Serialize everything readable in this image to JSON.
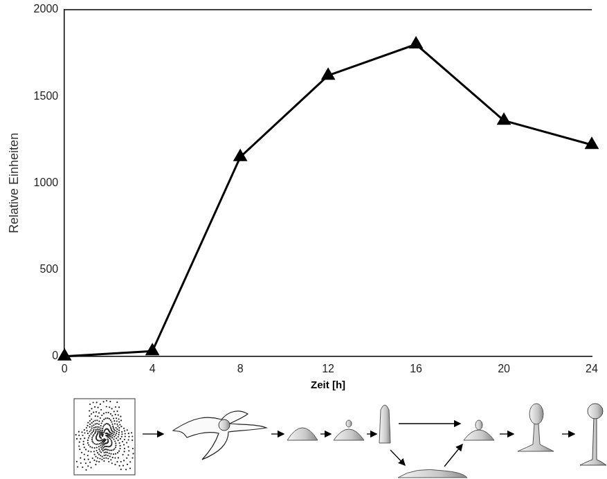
{
  "chart_data": {
    "type": "line",
    "x_label": "Zeit [h]",
    "y_label": "Relative Einheiten",
    "x": [
      0,
      4,
      8,
      12,
      16,
      20,
      24
    ],
    "values": [
      0,
      30,
      1150,
      1620,
      1800,
      1360,
      1220
    ],
    "color": "#000000",
    "marker": "triangle",
    "line_style": "solid",
    "xlim": [
      0,
      24
    ],
    "xticks": [
      0,
      4,
      8,
      12,
      16,
      20,
      24
    ],
    "ylim": [
      0,
      2000
    ],
    "yticks": [
      0,
      500,
      1000,
      1500,
      2000
    ],
    "grid": false
  }
}
